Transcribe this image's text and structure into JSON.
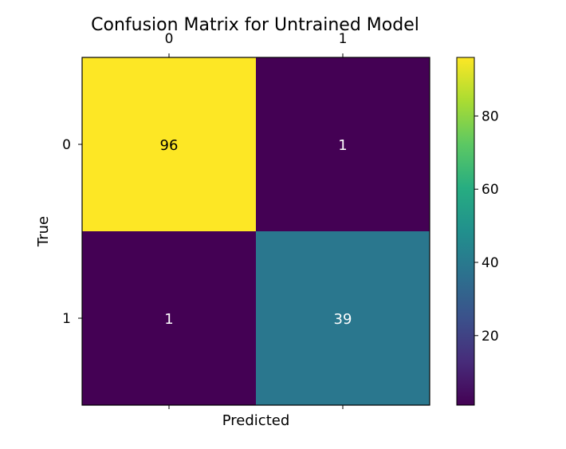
{
  "chart_data": {
    "type": "heatmap",
    "title": "Confusion Matrix for Untrained Model",
    "xlabel": "Predicted",
    "ylabel": "True",
    "x_categories": [
      "0",
      "1"
    ],
    "y_categories": [
      "0",
      "1"
    ],
    "values": [
      [
        96,
        1
      ],
      [
        1,
        39
      ]
    ],
    "colormap": "viridis",
    "x_ticks_position": "top",
    "colorbar": {
      "min": 1,
      "max": 96,
      "ticks": [
        20,
        40,
        60,
        80
      ],
      "tick_labels": [
        "20",
        "40",
        "60",
        "80"
      ],
      "placement": "right"
    },
    "grid": false
  }
}
